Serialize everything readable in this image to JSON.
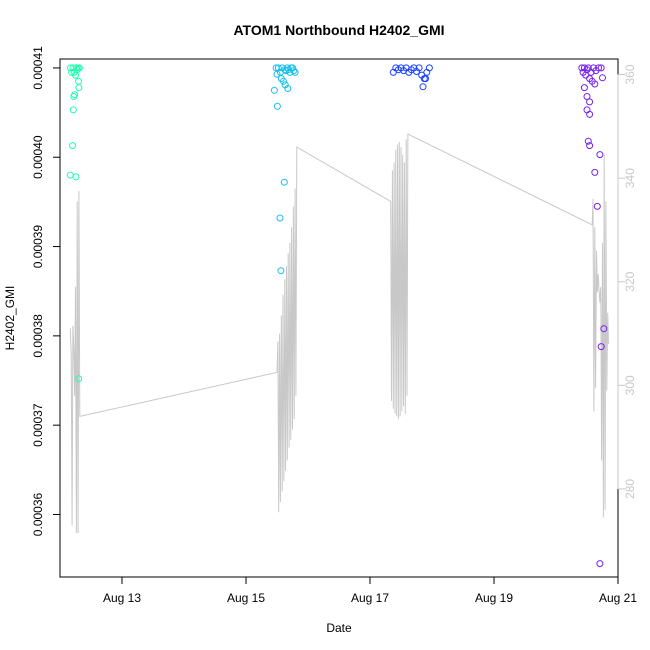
{
  "chart_data": {
    "type": "scatter",
    "title": "ATOM1 Northbound H2402_GMI",
    "xlabel": "Date",
    "ylabel": "H2402_GMI",
    "x_range": [
      "2020-08-12T00:00",
      "2020-08-21T00:00"
    ],
    "ylim": [
      0.000353,
      0.000411
    ],
    "y2lim": [
      263,
      363
    ],
    "x_ticks": [
      {
        "date": "2020-08-13",
        "label": "Aug 13"
      },
      {
        "date": "2020-08-15",
        "label": "Aug 15"
      },
      {
        "date": "2020-08-17",
        "label": "Aug 17"
      },
      {
        "date": "2020-08-19",
        "label": "Aug 19"
      },
      {
        "date": "2020-08-21",
        "label": "Aug 21"
      }
    ],
    "y_ticks": [
      "0.00036",
      "0.00037",
      "0.00038",
      "0.00039",
      "0.00040",
      "0.00041"
    ],
    "y2_ticks": [
      "280",
      "300",
      "320",
      "340",
      "360"
    ],
    "grid": false,
    "colors": {
      "line": "#c8c8c8",
      "secondary_axis": "#c8c8c8",
      "points_aug12": "#22ffb0",
      "points_aug15": "#18bff0",
      "points_aug17": "#1a44ff",
      "points_aug20": "#7722ee"
    },
    "series": [
      {
        "axis": "left",
        "marker": "open-circle",
        "color_key": "points_aug12",
        "points": [
          [
            "2020-08-12T04:05",
            0.00041
          ],
          [
            "2020-08-12T04:30",
            0.0004095
          ],
          [
            "2020-08-12T05:00",
            0.00041
          ],
          [
            "2020-08-12T05:30",
            0.0004095
          ],
          [
            "2020-08-12T06:00",
            0.0004092
          ],
          [
            "2020-08-12T06:20",
            0.00041
          ],
          [
            "2020-08-12T06:40",
            0.0004098
          ],
          [
            "2020-08-12T07:00",
            0.00041
          ],
          [
            "2020-08-12T07:30",
            0.00041
          ],
          [
            "2020-08-12T07:10",
            0.0004085
          ],
          [
            "2020-08-12T07:20",
            0.0004078
          ],
          [
            "2020-08-12T05:40",
            0.000407
          ],
          [
            "2020-08-12T05:20",
            0.0004068
          ],
          [
            "2020-08-12T05:10",
            0.0004053
          ],
          [
            "2020-08-12T04:50",
            0.0004013
          ],
          [
            "2020-08-12T04:00",
            0.000398
          ],
          [
            "2020-08-12T06:10",
            0.0003978
          ],
          [
            "2020-08-12T07:15",
            0.0003752
          ]
        ]
      },
      {
        "axis": "left",
        "marker": "open-circle",
        "color_key": "points_aug15",
        "points": [
          [
            "2020-08-15T11:40",
            0.00041
          ],
          [
            "2020-08-15T12:30",
            0.00041
          ],
          [
            "2020-08-15T13:20",
            0.0004095
          ],
          [
            "2020-08-15T14:00",
            0.00041
          ],
          [
            "2020-08-15T15:00",
            0.0004098
          ],
          [
            "2020-08-15T16:00",
            0.00041
          ],
          [
            "2020-08-15T17:00",
            0.0004095
          ],
          [
            "2020-08-15T18:00",
            0.00041
          ],
          [
            "2020-08-15T19:00",
            0.0004095
          ],
          [
            "2020-08-15T18:30",
            0.0004097
          ],
          [
            "2020-08-15T17:30",
            0.00041
          ],
          [
            "2020-08-15T16:30",
            0.0004098
          ],
          [
            "2020-08-15T15:30",
            0.0004097
          ],
          [
            "2020-08-15T12:00",
            0.0004093
          ],
          [
            "2020-08-15T13:40",
            0.0004088
          ],
          [
            "2020-08-15T14:30",
            0.0004085
          ],
          [
            "2020-08-15T15:10",
            0.0004081
          ],
          [
            "2020-08-15T16:10",
            0.0004077
          ],
          [
            "2020-08-15T11:00",
            0.0004075
          ],
          [
            "2020-08-15T12:10",
            0.0004057
          ],
          [
            "2020-08-15T14:50",
            0.0003972
          ],
          [
            "2020-08-15T13:10",
            0.0003932
          ],
          [
            "2020-08-15T13:30",
            0.0003873
          ]
        ]
      },
      {
        "axis": "left",
        "marker": "open-circle",
        "color_key": "points_aug17",
        "points": [
          [
            "2020-08-17T09:00",
            0.0004095
          ],
          [
            "2020-08-17T10:00",
            0.00041
          ],
          [
            "2020-08-17T11:00",
            0.0004098
          ],
          [
            "2020-08-17T12:00",
            0.00041
          ],
          [
            "2020-08-17T13:00",
            0.0004097
          ],
          [
            "2020-08-17T14:00",
            0.00041
          ],
          [
            "2020-08-17T15:00",
            0.0004095
          ],
          [
            "2020-08-17T16:00",
            0.0004098
          ],
          [
            "2020-08-17T17:00",
            0.00041
          ],
          [
            "2020-08-17T18:00",
            0.0004096
          ],
          [
            "2020-08-17T19:00",
            0.00041
          ],
          [
            "2020-08-17T20:00",
            0.0004092
          ],
          [
            "2020-08-17T21:00",
            0.0004088
          ],
          [
            "2020-08-17T22:00",
            0.0004095
          ],
          [
            "2020-08-17T23:00",
            0.00041
          ],
          [
            "2020-08-17T21:30",
            0.0004088
          ],
          [
            "2020-08-17T20:30",
            0.0004079
          ]
        ]
      },
      {
        "axis": "left",
        "marker": "open-circle",
        "color_key": "points_aug20",
        "points": [
          [
            "2020-08-20T10:00",
            0.00041
          ],
          [
            "2020-08-20T10:30",
            0.0004095
          ],
          [
            "2020-08-20T11:00",
            0.00041
          ],
          [
            "2020-08-20T11:30",
            0.0004092
          ],
          [
            "2020-08-20T12:00",
            0.0004098
          ],
          [
            "2020-08-20T12:30",
            0.00041
          ],
          [
            "2020-08-20T13:30",
            0.0004095
          ],
          [
            "2020-08-20T14:30",
            0.00041
          ],
          [
            "2020-08-20T15:30",
            0.0004097
          ],
          [
            "2020-08-20T16:30",
            0.00041
          ],
          [
            "2020-08-20T17:30",
            0.00041
          ],
          [
            "2020-08-20T18:00",
            0.0004089
          ],
          [
            "2020-08-20T13:00",
            0.0004088
          ],
          [
            "2020-08-20T14:00",
            0.0004085
          ],
          [
            "2020-08-20T15:00",
            0.0004082
          ],
          [
            "2020-08-20T11:00",
            0.0004078
          ],
          [
            "2020-08-20T12:00",
            0.0004068
          ],
          [
            "2020-08-20T13:00",
            0.0004062
          ],
          [
            "2020-08-20T12:00",
            0.0004053
          ],
          [
            "2020-08-20T13:00",
            0.0004048
          ],
          [
            "2020-08-20T17:00",
            0.0004003
          ],
          [
            "2020-08-20T12:30",
            0.0004018
          ],
          [
            "2020-08-20T13:00",
            0.0004013
          ],
          [
            "2020-08-20T15:00",
            0.0003983
          ],
          [
            "2020-08-20T16:00",
            0.0003945
          ],
          [
            "2020-08-20T18:30",
            0.0003808
          ],
          [
            "2020-08-20T17:30",
            0.0003788
          ],
          [
            "2020-08-20T17:00",
            0.0003545
          ]
        ]
      }
    ],
    "line_series": {
      "axis": "right",
      "color_key": "line",
      "points": [
        [
          "2020-08-12T04:00",
          311.0
        ],
        [
          "2020-08-12T04:20",
          306.0
        ],
        [
          "2020-08-12T04:40",
          273.0
        ],
        [
          "2020-08-12T05:00",
          311.5
        ],
        [
          "2020-08-12T05:20",
          307.0
        ],
        [
          "2020-08-12T05:40",
          298.0
        ],
        [
          "2020-08-12T06:00",
          319.0
        ],
        [
          "2020-08-12T06:20",
          271.5
        ],
        [
          "2020-08-12T06:40",
          335.5
        ],
        [
          "2020-08-12T07:00",
          271.5
        ],
        [
          "2020-08-12T07:20",
          337.5
        ],
        [
          "2020-08-12T07:40",
          294.0
        ],
        [
          "2020-08-15T12:00",
          302.5
        ],
        [
          "2020-08-15T12:20",
          308.5
        ],
        [
          "2020-08-15T12:40",
          275.5
        ],
        [
          "2020-08-15T13:00",
          310.0
        ],
        [
          "2020-08-15T13:20",
          277.5
        ],
        [
          "2020-08-15T13:40",
          313.5
        ],
        [
          "2020-08-15T14:00",
          279.5
        ],
        [
          "2020-08-15T14:20",
          317.5
        ],
        [
          "2020-08-15T14:40",
          281.5
        ],
        [
          "2020-08-15T15:00",
          320.5
        ],
        [
          "2020-08-15T15:20",
          283.5
        ],
        [
          "2020-08-15T15:40",
          323.0
        ],
        [
          "2020-08-15T16:00",
          285.5
        ],
        [
          "2020-08-15T16:20",
          325.5
        ],
        [
          "2020-08-15T16:40",
          288.0
        ],
        [
          "2020-08-15T17:00",
          327.5
        ],
        [
          "2020-08-15T17:20",
          289.5
        ],
        [
          "2020-08-15T17:40",
          330.5
        ],
        [
          "2020-08-15T18:00",
          291.5
        ],
        [
          "2020-08-15T18:20",
          334.5
        ],
        [
          "2020-08-15T18:40",
          293.5
        ],
        [
          "2020-08-15T19:00",
          338.0
        ],
        [
          "2020-08-15T19:20",
          298.0
        ],
        [
          "2020-08-15T19:40",
          346.0
        ],
        [
          "2020-08-17T08:00",
          335.5
        ],
        [
          "2020-08-17T08:20",
          297.0
        ],
        [
          "2020-08-17T08:40",
          341.5
        ],
        [
          "2020-08-17T09:00",
          295.5
        ],
        [
          "2020-08-17T09:20",
          343.0
        ],
        [
          "2020-08-17T09:40",
          294.5
        ],
        [
          "2020-08-17T10:00",
          345.5
        ],
        [
          "2020-08-17T10:20",
          294.0
        ],
        [
          "2020-08-17T10:40",
          346.5
        ],
        [
          "2020-08-17T11:00",
          293.5
        ],
        [
          "2020-08-17T11:20",
          347.0
        ],
        [
          "2020-08-17T11:40",
          294.0
        ],
        [
          "2020-08-17T12:00",
          346.0
        ],
        [
          "2020-08-17T12:20",
          295.0
        ],
        [
          "2020-08-17T12:40",
          344.5
        ],
        [
          "2020-08-17T13:00",
          296.0
        ],
        [
          "2020-08-17T13:20",
          343.0
        ],
        [
          "2020-08-17T13:40",
          294.5
        ],
        [
          "2020-08-17T14:00",
          347.5
        ],
        [
          "2020-08-17T14:20",
          298.0
        ],
        [
          "2020-08-17T14:40",
          348.5
        ],
        [
          "2020-08-20T14:00",
          331.0
        ],
        [
          "2020-08-20T14:20",
          336.0
        ],
        [
          "2020-08-20T14:40",
          295.0
        ],
        [
          "2020-08-20T15:00",
          330.5
        ],
        [
          "2020-08-20T15:20",
          299.5
        ],
        [
          "2020-08-20T15:40",
          326.0
        ],
        [
          "2020-08-20T16:00",
          318.0
        ],
        [
          "2020-08-20T16:20",
          321.5
        ],
        [
          "2020-08-20T16:40",
          318.0
        ],
        [
          "2020-08-20T17:00",
          316.0
        ],
        [
          "2020-08-20T17:20",
          319.0
        ],
        [
          "2020-08-20T17:40",
          285.5
        ],
        [
          "2020-08-20T18:00",
          327.5
        ],
        [
          "2020-08-20T18:20",
          274.5
        ],
        [
          "2020-08-20T18:40",
          344.5
        ],
        [
          "2020-08-20T19:00",
          276.0
        ],
        [
          "2020-08-20T19:20",
          335.5
        ],
        [
          "2020-08-20T19:40",
          299.0
        ],
        [
          "2020-08-20T20:00",
          314.0
        ],
        [
          "2020-08-20T20:20",
          308.0
        ]
      ]
    }
  }
}
